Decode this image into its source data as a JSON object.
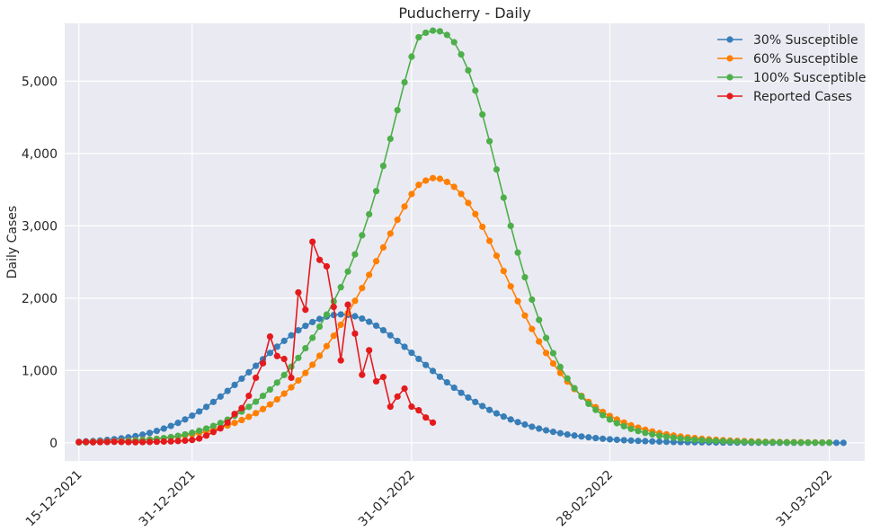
{
  "chart_data": {
    "type": "line",
    "title": "Puducherry - Daily",
    "xlabel": "",
    "ylabel": "Daily Cases",
    "x_start_date": "15-12-2021",
    "x_end_date": "31-03-2022",
    "xlim_dates": [
      "13-12-2021",
      "05-04-2022"
    ],
    "ylim": [
      -250,
      5800
    ],
    "xticks": [
      {
        "date": "15-12-2021",
        "label": "15-12-2021"
      },
      {
        "date": "31-12-2021",
        "label": "31-12-2021"
      },
      {
        "date": "31-01-2022",
        "label": "31-01-2022"
      },
      {
        "date": "28-02-2022",
        "label": "28-02-2022"
      },
      {
        "date": "31-03-2022",
        "label": "31-03-2022"
      }
    ],
    "yticks": [
      {
        "value": 0,
        "label": "0"
      },
      {
        "value": 1000,
        "label": "1,000"
      },
      {
        "value": 2000,
        "label": "2,000"
      },
      {
        "value": 3000,
        "label": "3,000"
      },
      {
        "value": 4000,
        "label": "4,000"
      },
      {
        "value": 5000,
        "label": "5,000"
      }
    ],
    "grid": true,
    "background": "#eaeaf2",
    "legend_position": "top-right",
    "series": [
      {
        "name": "30% Susceptible",
        "color": "#377eb8",
        "start_date": "15-12-2021",
        "values": [
          15,
          20,
          25,
          32,
          40,
          50,
          62,
          76,
          93,
          113,
          137,
          165,
          197,
          234,
          276,
          323,
          376,
          434,
          497,
          566,
          640,
          718,
          801,
          887,
          975,
          1065,
          1155,
          1243,
          1329,
          1410,
          1486,
          1556,
          1617,
          1670,
          1713,
          1746,
          1767,
          1776,
          1770,
          1750,
          1718,
          1674,
          1620,
          1557,
          1486,
          1409,
          1328,
          1245,
          1161,
          1077,
          994,
          913,
          836,
          762,
          692,
          626,
          565,
          508,
          455,
          407,
          363,
          323,
          286,
          253,
          223,
          197,
          173,
          152,
          133,
          116,
          101,
          88,
          76,
          66,
          57,
          49,
          42,
          36,
          31,
          27,
          23,
          20,
          17,
          14,
          12,
          10,
          9,
          8,
          7,
          6,
          5,
          4,
          4,
          3,
          3,
          2,
          2,
          2,
          1,
          1,
          1,
          1,
          1,
          1,
          1,
          1,
          1,
          0,
          0
        ]
      },
      {
        "name": "60% Susceptible",
        "color": "#ff7f00",
        "start_date": "15-12-2021",
        "values": [
          10,
          12,
          14,
          16,
          18,
          21,
          25,
          29,
          34,
          40,
          47,
          55,
          64,
          75,
          87,
          101,
          117,
          136,
          157,
          181,
          208,
          239,
          275,
          315,
          360,
          410,
          467,
          531,
          601,
          680,
          767,
          862,
          966,
          1080,
          1204,
          1337,
          1480,
          1633,
          1794,
          1963,
          2140,
          2323,
          2511,
          2702,
          2894,
          3084,
          3268,
          3440,
          3567,
          3626,
          3660,
          3651,
          3608,
          3539,
          3442,
          3317,
          3163,
          2987,
          2793,
          2587,
          2375,
          2164,
          1958,
          1760,
          1574,
          1401,
          1242,
          1097,
          966,
          848,
          743,
          649,
          566,
          493,
          428,
          372,
          323,
          280,
          242,
          210,
          181,
          157,
          135,
          117,
          101,
          87,
          75,
          65,
          56,
          48,
          42,
          36,
          31,
          27,
          23,
          20,
          17,
          15,
          13,
          11,
          10,
          9,
          8,
          7,
          6,
          5,
          5
        ]
      },
      {
        "name": "100% Susceptible",
        "color": "#4daf4a",
        "start_date": "15-12-2021",
        "values": [
          5,
          6,
          8,
          10,
          12,
          15,
          19,
          23,
          29,
          36,
          44,
          54,
          66,
          80,
          97,
          117,
          140,
          167,
          198,
          234,
          275,
          321,
          373,
          432,
          497,
          569,
          649,
          737,
          833,
          938,
          1052,
          1175,
          1308,
          1452,
          1607,
          1774,
          1955,
          2152,
          2368,
          2606,
          2870,
          3161,
          3481,
          3829,
          4204,
          4600,
          4985,
          5340,
          5608,
          5670,
          5700,
          5690,
          5640,
          5540,
          5370,
          5150,
          4870,
          4540,
          4170,
          3780,
          3390,
          3000,
          2630,
          2290,
          1980,
          1700,
          1450,
          1240,
          1050,
          890,
          755,
          640,
          540,
          455,
          383,
          322,
          272,
          229,
          193,
          163,
          138,
          117,
          99,
          84,
          71,
          60,
          51,
          43,
          37,
          31,
          27,
          23,
          19,
          16,
          14,
          12,
          10,
          9,
          8,
          7,
          6,
          5,
          4,
          4,
          3,
          3,
          3
        ]
      },
      {
        "name": "Reported Cases",
        "color": "#e41a1c",
        "start_date": "15-12-2021",
        "values": [
          10,
          12,
          8,
          10,
          12,
          15,
          12,
          10,
          8,
          10,
          12,
          15,
          18,
          20,
          25,
          30,
          40,
          60,
          100,
          150,
          200,
          280,
          400,
          480,
          650,
          900,
          1100,
          1470,
          1200,
          1160,
          900,
          2080,
          1840,
          2780,
          2530,
          2440,
          1880,
          1140,
          1910,
          1510,
          940,
          1280,
          850,
          910,
          500,
          640,
          750,
          500,
          450,
          350,
          280
        ]
      }
    ]
  }
}
